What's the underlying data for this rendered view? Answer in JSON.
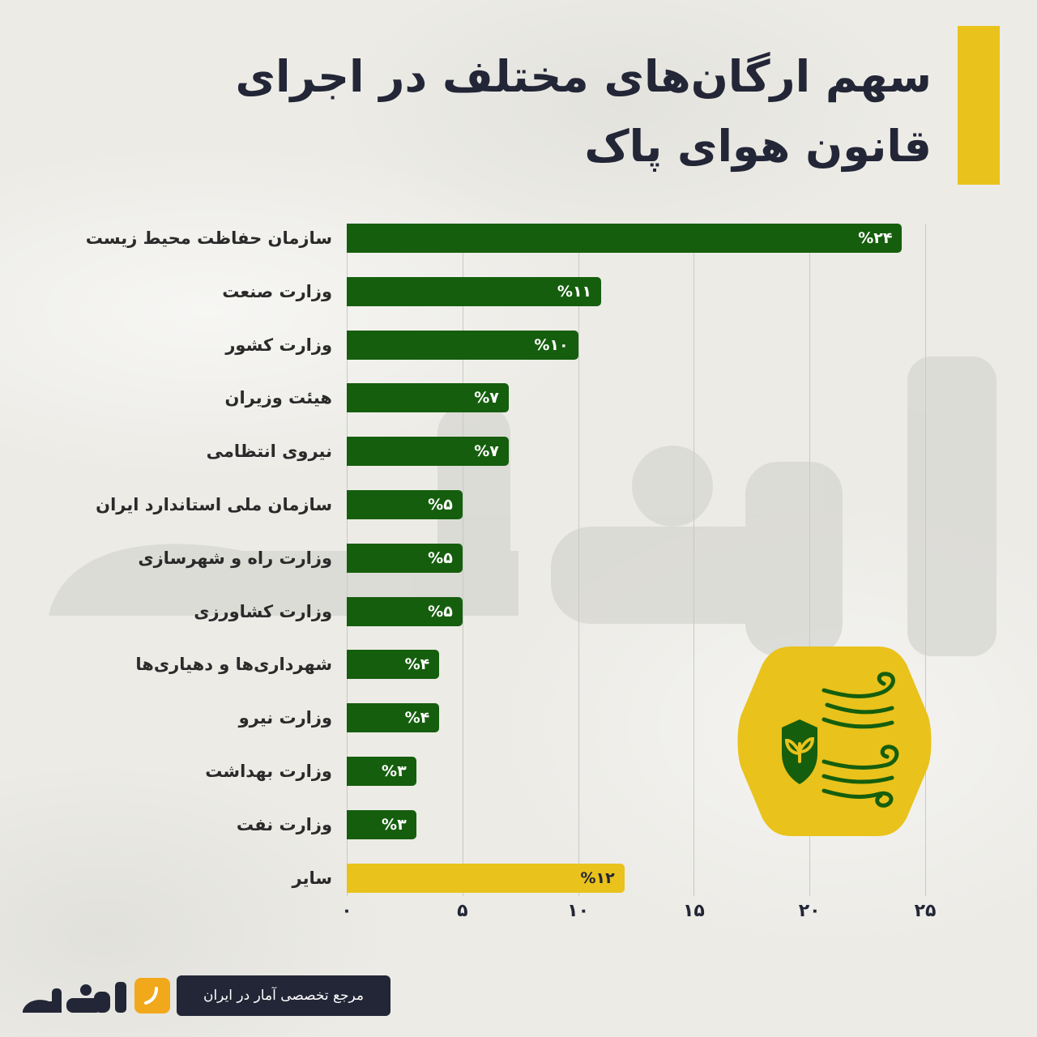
{
  "title": "سهم ارگان‌های مختلف در اجرای قانون هوای پاک",
  "colors": {
    "bar": "#155e0d",
    "highlight": "#e9c21b",
    "text_dark": "#222636",
    "badge_green": "#155e0d"
  },
  "chart_data": {
    "type": "bar",
    "orientation": "horizontal",
    "categories": [
      "سازمان حفاظت محیط زیست",
      "وزارت صنعت",
      "وزارت کشور",
      "هیئت وزیران",
      "نیروی انتظامی",
      "سازمان ملی استاندارد ایران",
      "وزارت راه و شهرسازی",
      "وزارت کشاورزی",
      "شهرداری‌ها و دهیاری‌ها",
      "وزارت نیرو",
      "وزارت بهداشت",
      "وزارت نفت",
      "سایر"
    ],
    "values": [
      24,
      11,
      10,
      7,
      7,
      5,
      5,
      5,
      4,
      4,
      3,
      3,
      12
    ],
    "value_labels": [
      "%۲۴",
      "%۱۱",
      "%۱۰",
      "%۷",
      "%۷",
      "%۵",
      "%۵",
      "%۵",
      "%۴",
      "%۴",
      "%۳",
      "%۳",
      "%۱۲"
    ],
    "highlight_category": "سایر",
    "xlim": [
      0,
      25
    ],
    "xticks": [
      0,
      5,
      10,
      15,
      20,
      25
    ],
    "xtick_labels": [
      "۰",
      "۵",
      "۱۰",
      "۱۵",
      "۲۰",
      "۲۵"
    ],
    "grid": true,
    "legend": "none"
  },
  "footer": {
    "logo": "آمارفکت",
    "tagline": "مرجع تخصصی آمار در ایران",
    "tagline_icon": "slash-icon"
  },
  "badge": {
    "icon": "shield-leaf-wind-icon"
  }
}
